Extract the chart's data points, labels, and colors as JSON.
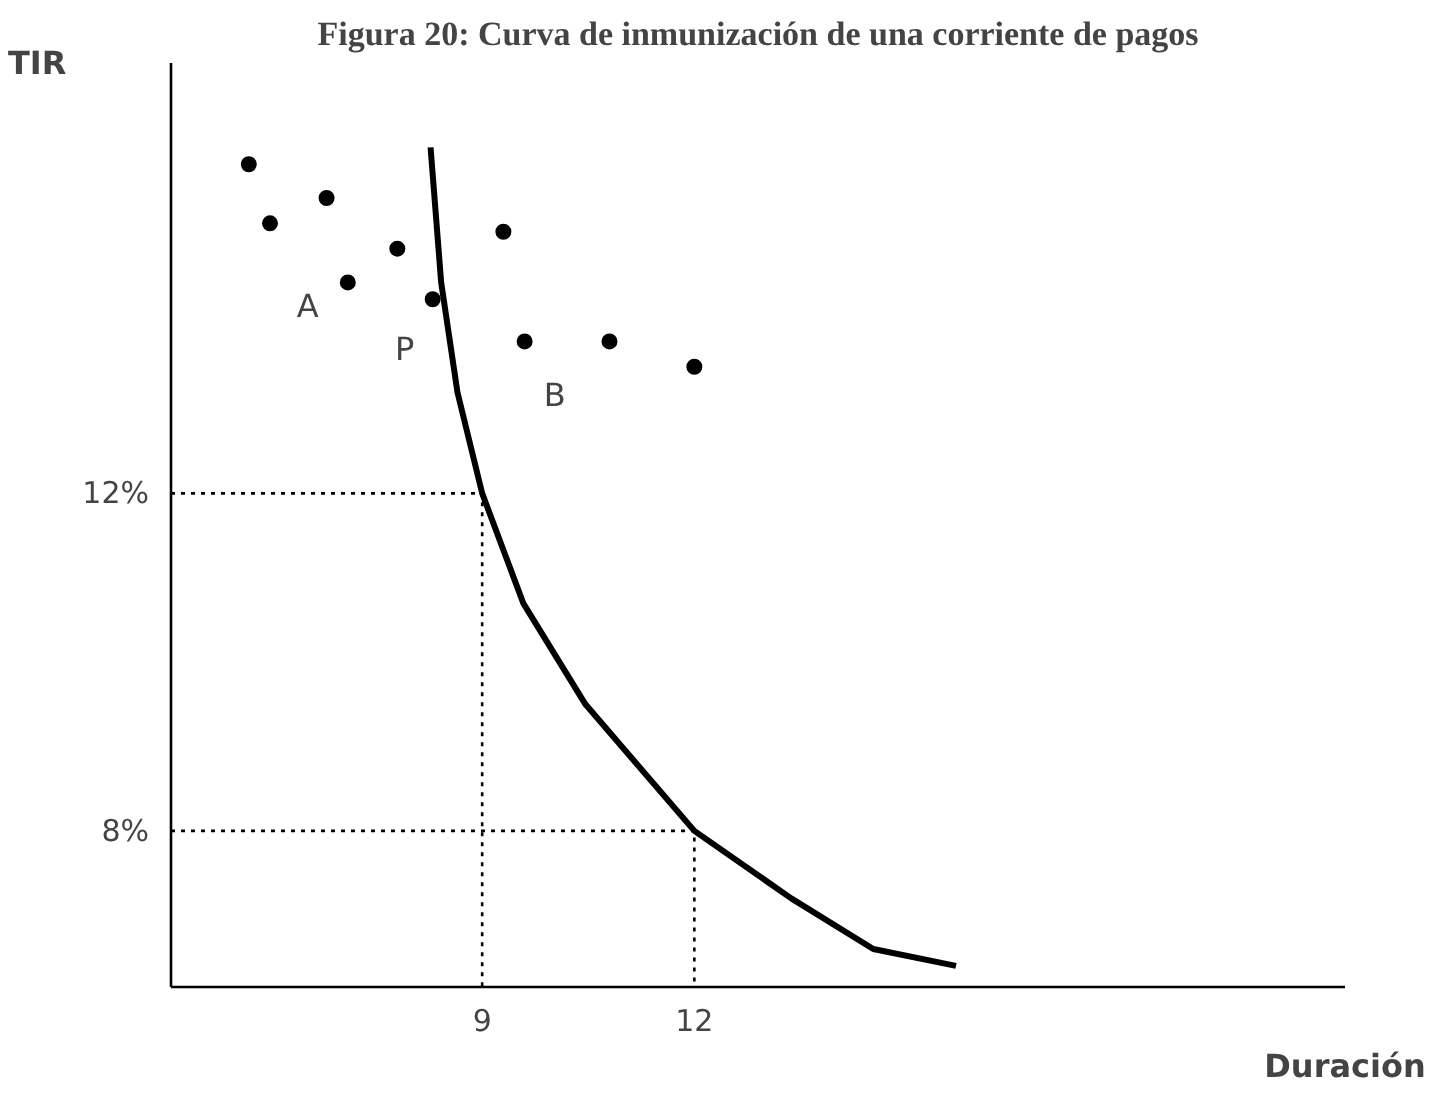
{
  "chart_data": {
    "type": "scatter",
    "title": "Figura 20: Curva de inmunización de una corriente de pagos",
    "xlabel": "Duración",
    "ylabel": "TIR",
    "xlim": [
      4.6,
      21.2
    ],
    "ylim": [
      6.15,
      17.1
    ],
    "xticks": [
      9,
      12
    ],
    "yticks": [
      {
        "value": 8,
        "label": "8%"
      },
      {
        "value": 12,
        "label": "12%"
      }
    ],
    "grid": false,
    "series": [
      {
        "marker": "circle",
        "color": "#000000",
        "x": [
          5.7,
          6.0,
          6.8,
          7.1,
          7.8,
          8.3,
          9.3,
          9.6,
          10.8,
          12.0
        ],
        "values": [
          15.9,
          15.2,
          15.5,
          14.5,
          14.9,
          14.3,
          15.1,
          13.8,
          13.8,
          13.5
        ]
      },
      {
        "type": "line",
        "color": "#000000",
        "line_style": "solid",
        "x": [
          8.27,
          8.42,
          8.65,
          9,
          9.58,
          10.46,
          12,
          13.37,
          14.53,
          15.7
        ],
        "values": [
          16.1,
          14.5,
          13.2,
          12,
          10.7,
          9.5,
          8,
          7.2,
          6.6,
          6.4
        ]
      },
      {
        "type": "line",
        "color": "#000000",
        "line_style": "dotted",
        "x": [
          4.6,
          9,
          9
        ],
        "values": [
          12,
          12,
          6.15
        ]
      },
      {
        "type": "line",
        "color": "#000000",
        "line_style": "dotted",
        "x": [
          4.6,
          12,
          12
        ],
        "values": [
          8,
          8,
          6.15
        ]
      }
    ],
    "annotations": [
      {
        "text": "A",
        "x": 7.1,
        "y": 14.5
      },
      {
        "text": "P",
        "x": 8.3,
        "y": 14.3
      },
      {
        "text": "B",
        "x": 9.6,
        "y": 13.8
      }
    ]
  }
}
